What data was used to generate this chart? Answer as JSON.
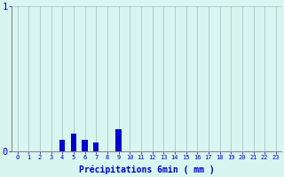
{
  "hours": [
    0,
    1,
    2,
    3,
    4,
    5,
    6,
    7,
    8,
    9,
    10,
    11,
    12,
    13,
    14,
    15,
    16,
    17,
    18,
    19,
    20,
    21,
    22,
    23
  ],
  "values": [
    0,
    0,
    0,
    0,
    0.08,
    0.12,
    0.08,
    0.06,
    0,
    0.15,
    0,
    0,
    0,
    0,
    0,
    0,
    0,
    0,
    0,
    0,
    0,
    0,
    0,
    0
  ],
  "bar_color": "#0000cc",
  "background_color": "#d8f5f0",
  "grid_color": "#aac8c8",
  "axis_color": "#888888",
  "text_color": "#0000cc",
  "ylim": [
    0,
    1
  ],
  "xlim": [
    -0.5,
    23.5
  ],
  "xlabel": "Précipitations 6min ( mm )",
  "ytick_labels": [
    "0",
    "1"
  ],
  "ytick_values": [
    0,
    1
  ],
  "bar_width": 0.5
}
